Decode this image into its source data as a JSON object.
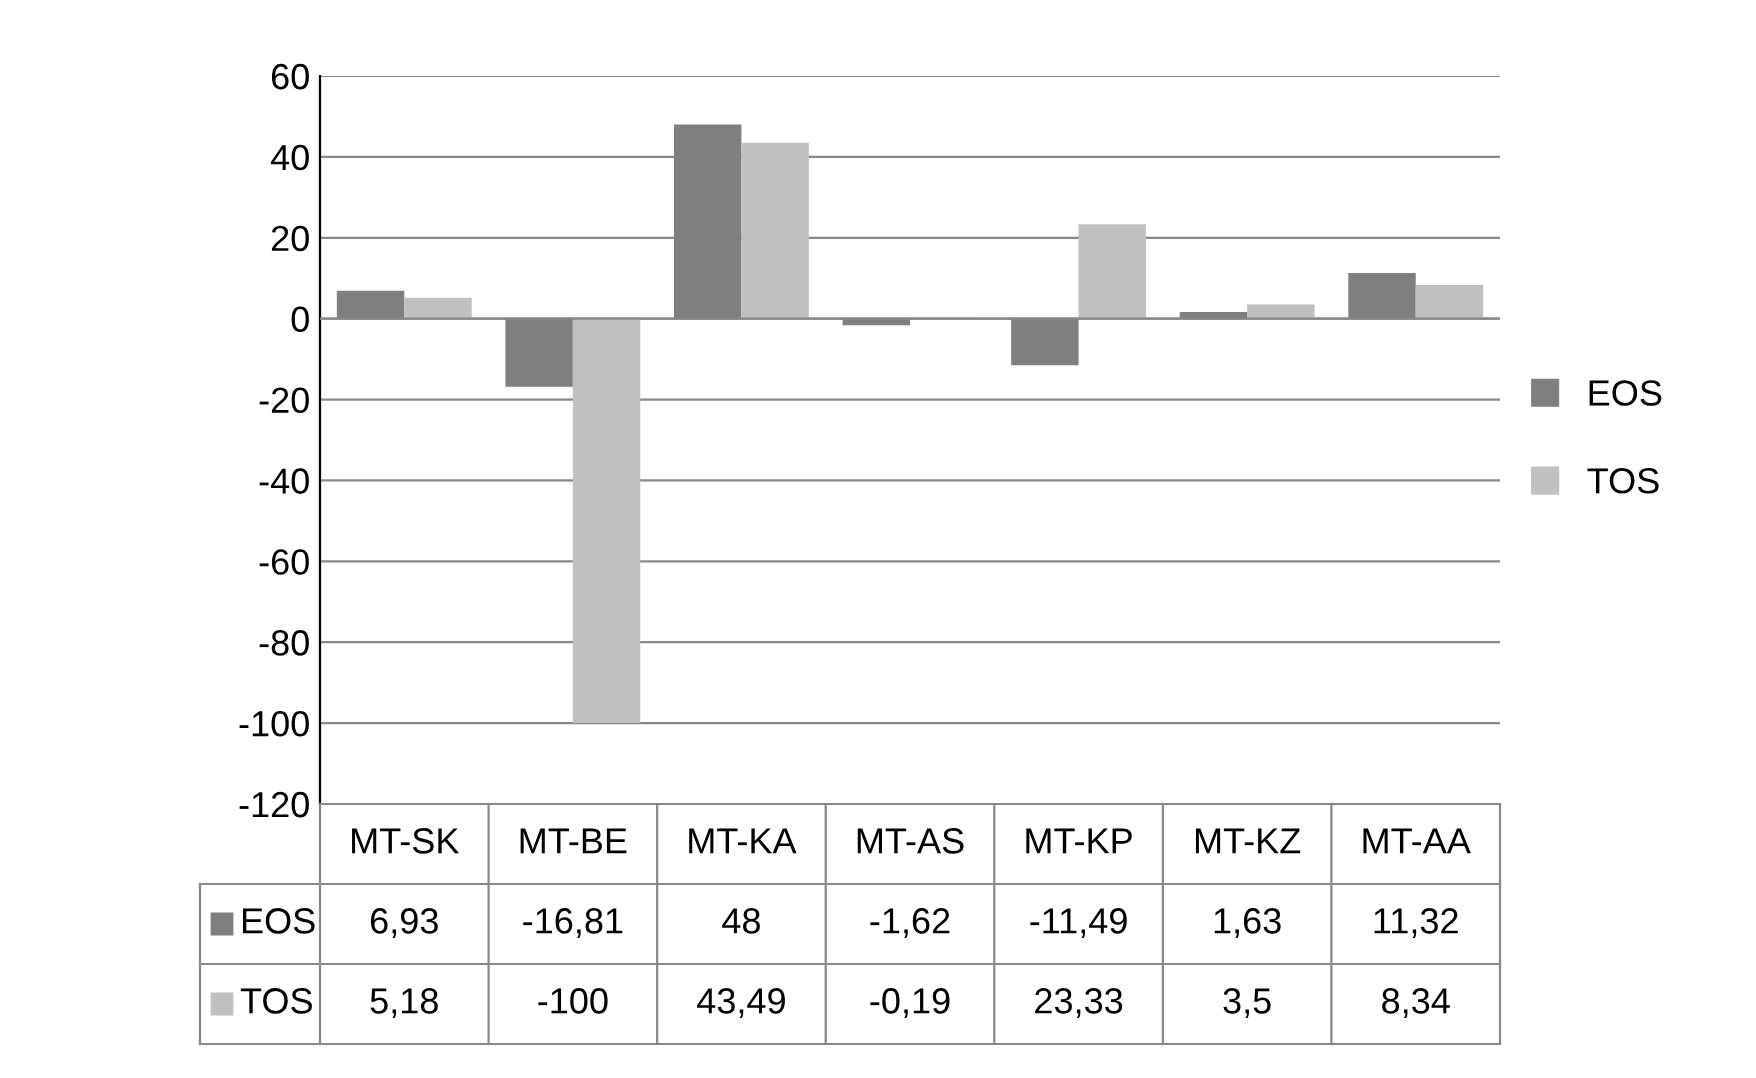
{
  "chart_data": {
    "type": "bar",
    "categories": [
      "MT-SK",
      "MT-BE",
      "MT-KA",
      "MT-AS",
      "MT-KP",
      "MT-KZ",
      "MT-AA"
    ],
    "series": [
      {
        "name": "EOS",
        "color": "#7f7f7f",
        "values": [
          6.93,
          -16.81,
          48,
          -1.62,
          -11.49,
          1.63,
          11.32
        ],
        "value_labels": [
          "6,93",
          "-16,81",
          "48",
          "-1,62",
          "-11,49",
          "1,63",
          "11,32"
        ]
      },
      {
        "name": "TOS",
        "color": "#c0c0c0",
        "values": [
          5.18,
          -100,
          43.49,
          -0.19,
          23.33,
          3.5,
          8.34
        ],
        "value_labels": [
          "5,18",
          "-100",
          "43,49",
          "-0,19",
          "23,33",
          "3,5",
          "8,34"
        ]
      }
    ],
    "ylim": [
      -120,
      60
    ],
    "yticks": [
      -120,
      -100,
      -80,
      -60,
      -40,
      -20,
      0,
      20,
      40,
      60
    ],
    "grid": "y",
    "legend": "right"
  }
}
